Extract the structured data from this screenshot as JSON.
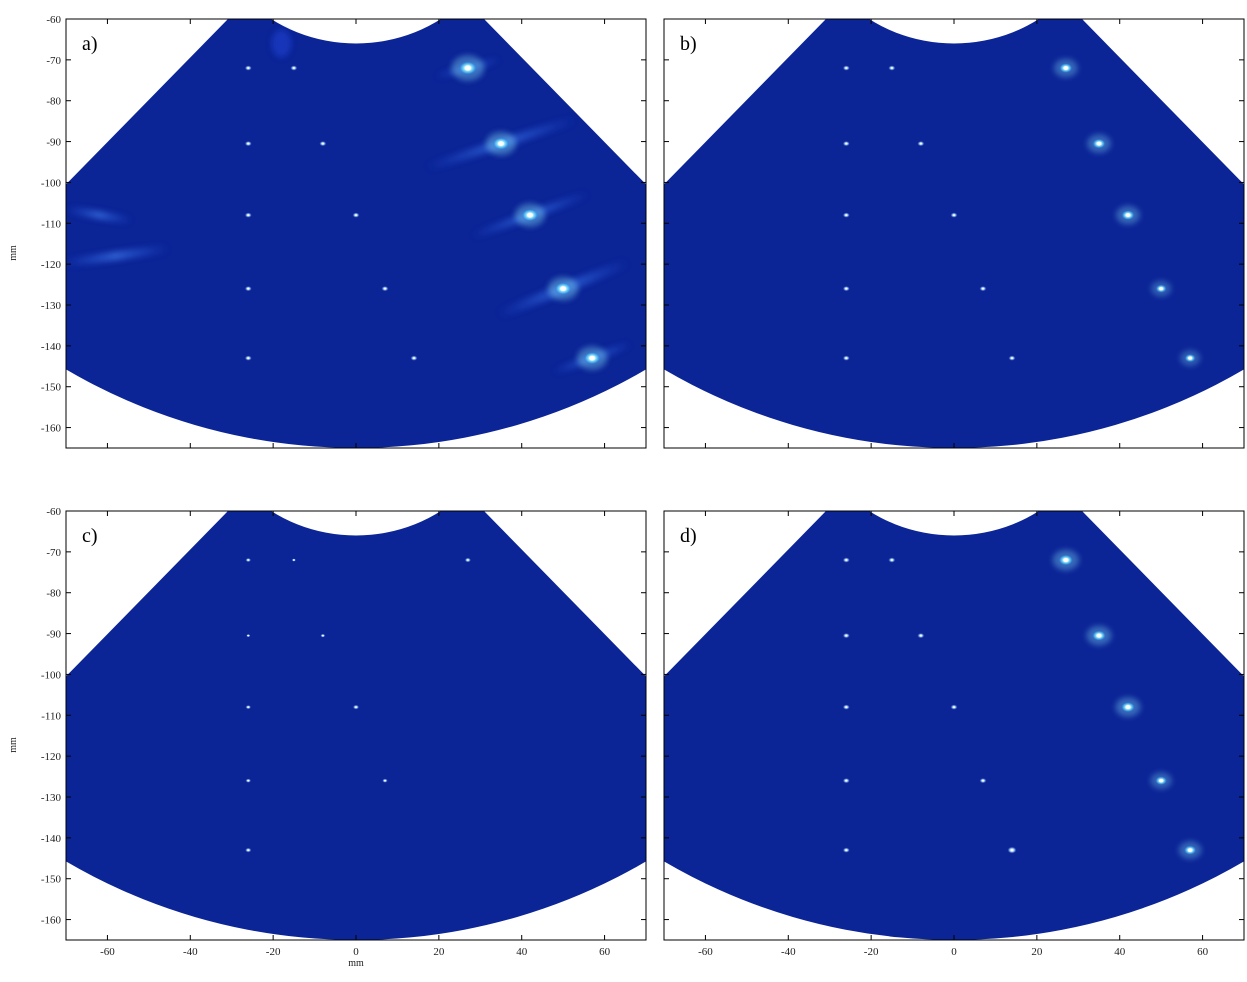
{
  "figure": {
    "background": "#ffffff"
  },
  "colors": {
    "sector_fill": "#0b2496",
    "sector_glow": "#1a3fd0",
    "point_core": "#ffffff",
    "point_halo": "#8ff3ff",
    "artifact": "#2e6cff",
    "axes_frame": "#000000"
  },
  "chart_data": [
    {
      "type": "heatmap",
      "label": "a)",
      "xlabel": "",
      "ylabel": "mm",
      "xlim": [
        -70,
        70
      ],
      "ylim": [
        -165,
        -60
      ],
      "yticks": [
        -60,
        -70,
        -80,
        -90,
        -100,
        -110,
        -120,
        -130,
        -140,
        -150,
        -160
      ],
      "xticks": [],
      "points": [
        {
          "x": -26,
          "y": -72,
          "intensity": 0.5,
          "size": 1
        },
        {
          "x": -15,
          "y": -72,
          "intensity": 0.5,
          "size": 1
        },
        {
          "x": 27,
          "y": -72,
          "intensity": 1.0,
          "size": 2.6
        },
        {
          "x": -26,
          "y": -90.5,
          "intensity": 0.5,
          "size": 1
        },
        {
          "x": -8,
          "y": -90.5,
          "intensity": 0.5,
          "size": 1
        },
        {
          "x": 35,
          "y": -90.5,
          "intensity": 1.0,
          "size": 2.4
        },
        {
          "x": -26,
          "y": -108,
          "intensity": 0.5,
          "size": 1
        },
        {
          "x": 0,
          "y": -108,
          "intensity": 0.5,
          "size": 1
        },
        {
          "x": 42,
          "y": -108,
          "intensity": 1.0,
          "size": 2.4
        },
        {
          "x": -26,
          "y": -126,
          "intensity": 0.5,
          "size": 1
        },
        {
          "x": 7,
          "y": -126,
          "intensity": 0.5,
          "size": 1
        },
        {
          "x": 50,
          "y": -126,
          "intensity": 1.0,
          "size": 2.4
        },
        {
          "x": -26,
          "y": -143,
          "intensity": 0.5,
          "size": 1
        },
        {
          "x": 14,
          "y": -143,
          "intensity": 0.5,
          "size": 1
        },
        {
          "x": 57,
          "y": -143,
          "intensity": 1.0,
          "size": 2.4
        }
      ],
      "artifacts": true
    },
    {
      "type": "heatmap",
      "label": "b)",
      "xlabel": "",
      "ylabel": "",
      "xlim": [
        -70,
        70
      ],
      "ylim": [
        -165,
        -60
      ],
      "yticks": [],
      "xticks": [],
      "points": [
        {
          "x": -26,
          "y": -72,
          "intensity": 0.5,
          "size": 1
        },
        {
          "x": -15,
          "y": -72,
          "intensity": 0.5,
          "size": 1
        },
        {
          "x": 27,
          "y": -72,
          "intensity": 0.9,
          "size": 1.9
        },
        {
          "x": -26,
          "y": -90.5,
          "intensity": 0.5,
          "size": 1
        },
        {
          "x": -8,
          "y": -90.5,
          "intensity": 0.5,
          "size": 1
        },
        {
          "x": 35,
          "y": -90.5,
          "intensity": 0.9,
          "size": 1.9
        },
        {
          "x": -26,
          "y": -108,
          "intensity": 0.5,
          "size": 1
        },
        {
          "x": 0,
          "y": -108,
          "intensity": 0.5,
          "size": 1
        },
        {
          "x": 42,
          "y": -108,
          "intensity": 0.9,
          "size": 1.9
        },
        {
          "x": -26,
          "y": -126,
          "intensity": 0.5,
          "size": 1
        },
        {
          "x": 7,
          "y": -126,
          "intensity": 0.5,
          "size": 1
        },
        {
          "x": 50,
          "y": -126,
          "intensity": 0.8,
          "size": 1.6
        },
        {
          "x": -26,
          "y": -143,
          "intensity": 0.5,
          "size": 1
        },
        {
          "x": 14,
          "y": -143,
          "intensity": 0.5,
          "size": 1
        },
        {
          "x": 57,
          "y": -143,
          "intensity": 0.8,
          "size": 1.6
        }
      ],
      "artifacts": false
    },
    {
      "type": "heatmap",
      "label": "c)",
      "xlabel": "mm",
      "ylabel": "mm",
      "xlim": [
        -70,
        70
      ],
      "ylim": [
        -165,
        -60
      ],
      "yticks": [
        -60,
        -70,
        -80,
        -90,
        -100,
        -110,
        -120,
        -130,
        -140,
        -150,
        -160
      ],
      "xticks": [
        -60,
        -40,
        -20,
        0,
        20,
        40,
        60
      ],
      "points": [
        {
          "x": -26,
          "y": -72,
          "intensity": 0.4,
          "size": 0.8
        },
        {
          "x": -15,
          "y": -72,
          "intensity": 0.3,
          "size": 0.6
        },
        {
          "x": 27,
          "y": -72,
          "intensity": 0.5,
          "size": 0.9
        },
        {
          "x": -26,
          "y": -90.5,
          "intensity": 0.3,
          "size": 0.6
        },
        {
          "x": -8,
          "y": -90.5,
          "intensity": 0.4,
          "size": 0.7
        },
        {
          "x": -26,
          "y": -108,
          "intensity": 0.4,
          "size": 0.8
        },
        {
          "x": 0,
          "y": -108,
          "intensity": 0.5,
          "size": 0.9
        },
        {
          "x": -26,
          "y": -126,
          "intensity": 0.4,
          "size": 0.8
        },
        {
          "x": 7,
          "y": -126,
          "intensity": 0.4,
          "size": 0.8
        },
        {
          "x": -26,
          "y": -143,
          "intensity": 0.5,
          "size": 0.9
        }
      ],
      "artifacts": false
    },
    {
      "type": "heatmap",
      "label": "d)",
      "xlabel": "",
      "ylabel": "",
      "xlim": [
        -70,
        70
      ],
      "ylim": [
        -165,
        -60
      ],
      "yticks": [],
      "xticks": [
        -60,
        -40,
        -20,
        0,
        20,
        40,
        60
      ],
      "points": [
        {
          "x": -26,
          "y": -72,
          "intensity": 0.5,
          "size": 1
        },
        {
          "x": -15,
          "y": -72,
          "intensity": 0.5,
          "size": 1
        },
        {
          "x": 27,
          "y": -72,
          "intensity": 0.95,
          "size": 2.1
        },
        {
          "x": -26,
          "y": -90.5,
          "intensity": 0.5,
          "size": 1
        },
        {
          "x": -8,
          "y": -90.5,
          "intensity": 0.5,
          "size": 1
        },
        {
          "x": 35,
          "y": -90.5,
          "intensity": 0.95,
          "size": 2.0
        },
        {
          "x": -26,
          "y": -108,
          "intensity": 0.5,
          "size": 1
        },
        {
          "x": 0,
          "y": -108,
          "intensity": 0.5,
          "size": 1
        },
        {
          "x": 42,
          "y": -108,
          "intensity": 0.95,
          "size": 2.0
        },
        {
          "x": -26,
          "y": -126,
          "intensity": 0.5,
          "size": 1
        },
        {
          "x": 7,
          "y": -126,
          "intensity": 0.5,
          "size": 1
        },
        {
          "x": 50,
          "y": -126,
          "intensity": 0.85,
          "size": 1.7
        },
        {
          "x": -26,
          "y": -143,
          "intensity": 0.5,
          "size": 1
        },
        {
          "x": 14,
          "y": -143,
          "intensity": 0.7,
          "size": 1.3
        },
        {
          "x": 57,
          "y": -143,
          "intensity": 0.9,
          "size": 1.8
        }
      ],
      "artifacts": false
    }
  ]
}
